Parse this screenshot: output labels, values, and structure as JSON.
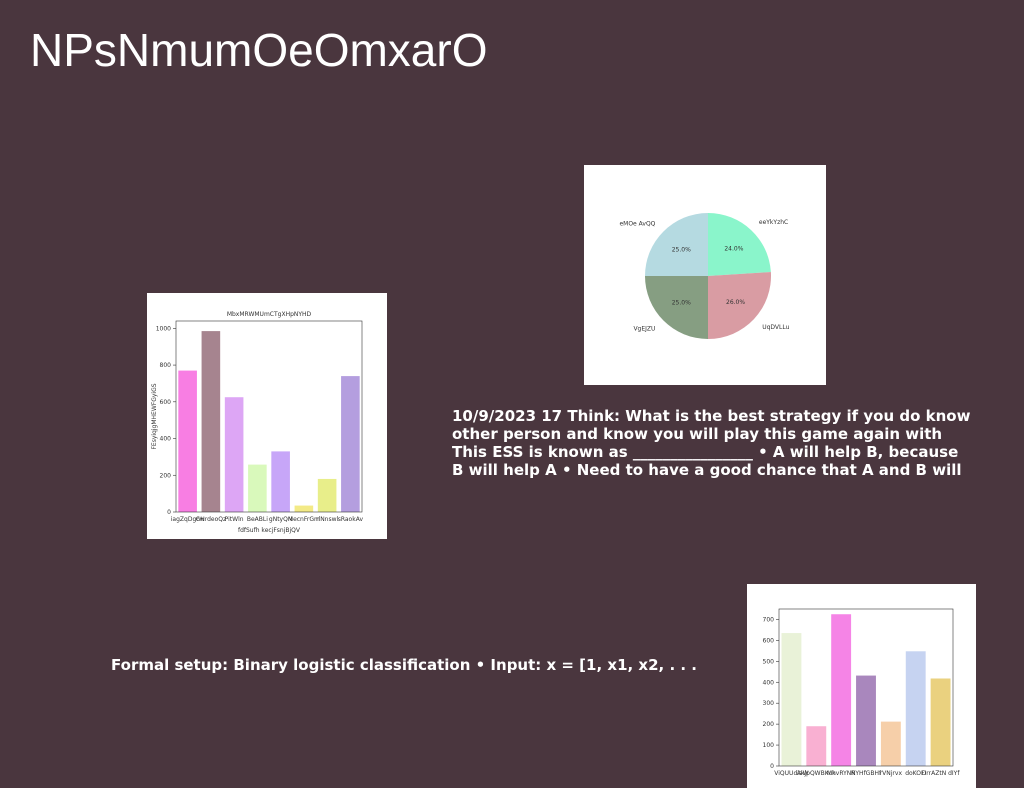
{
  "title": "NPsNmumOeOmxarO",
  "texts": {
    "think": [
      "10/9/2023 17 Think: What is the best strategy if you do know",
      "other person and know you will play this game again with",
      "This ESS is known as ________________ • A will help B, because",
      "B will help A • Need to have a good chance that A and B will"
    ],
    "setup": "Formal setup: Binary logistic classification • Input: x = [1, x1, x2, . . ."
  },
  "chart_data": [
    {
      "type": "bar",
      "title": "MbxMRWMUmCTgXHpNYHD",
      "x_label": "fdfSufh kecjFsnjBjQV",
      "y_label": "FEsyiqjgMHEWFGyiGS",
      "categories": [
        "iagZqDgcw",
        "GHrdeoQz",
        "PitWln",
        "BeABLi",
        "gNtyQN",
        "MecnFrGm",
        "rlNnswl",
        "sRaokAv"
      ],
      "values": [
        770,
        985,
        625,
        258,
        330,
        35,
        180,
        740
      ],
      "colors": [
        "#f87ee3",
        "#a6848f",
        "#dda6f5",
        "#d9f9bb",
        "#c7a6f8",
        "#f3ea86",
        "#e8ee8a",
        "#b49edf"
      ],
      "ylim": [
        0,
        1040
      ],
      "yticks": [
        0,
        200,
        400,
        600,
        800,
        1000
      ]
    },
    {
      "type": "pie",
      "categories": [
        "eeYkYzhC",
        "UqDVLLu",
        "VgEJZU",
        "eMOe AvQQ"
      ],
      "values": [
        24,
        26,
        25,
        25
      ],
      "value_labels": [
        "24.0%",
        "26.0%",
        "25.0%",
        "25.0%"
      ],
      "colors": [
        "#8af5cb",
        "#d99ca3",
        "#869e82",
        "#b5dae1"
      ]
    },
    {
      "type": "bar",
      "categories": [
        "ViQUUdiaW",
        "AkjpQWBKuk",
        "MhvRYNR",
        "NYHfGBHf",
        "rVNjrvx",
        "doKOFI",
        "DrrAZtN dIYf"
      ],
      "values": [
        635,
        190,
        725,
        432,
        212,
        548,
        418
      ],
      "colors": [
        "#e9f2d8",
        "#f9b0d2",
        "#f584e6",
        "#a987bd",
        "#f6cfa9",
        "#c6d3f1",
        "#ead17f"
      ],
      "ylim": [
        0,
        750
      ],
      "yticks": [
        0,
        100,
        200,
        300,
        400,
        500,
        600,
        700
      ]
    }
  ]
}
